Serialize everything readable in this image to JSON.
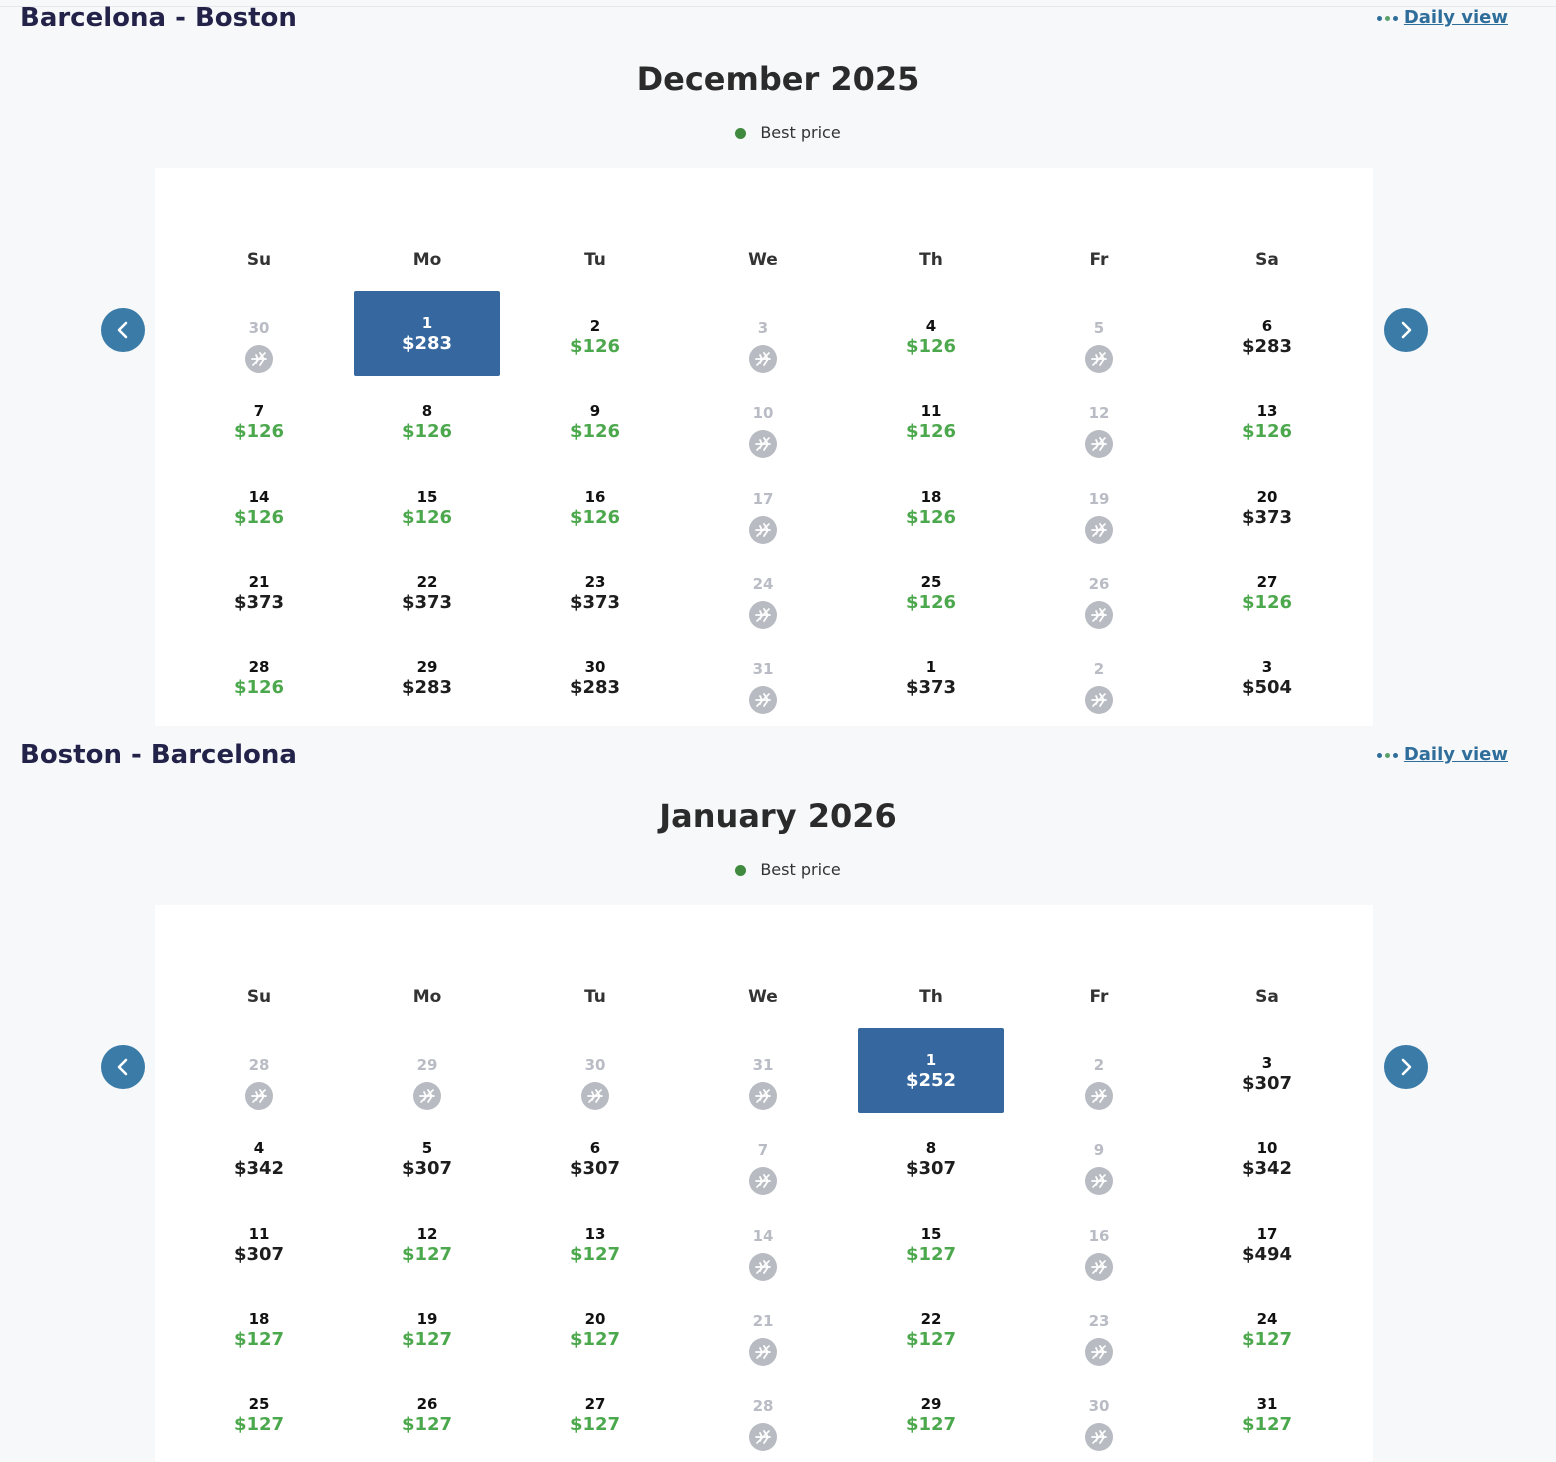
{
  "colors": {
    "selected": "#36679f",
    "best": "#4ca84c",
    "nav": "#3a7ba8",
    "no_flight": "#b8bbc2"
  },
  "icons": {
    "no_flight": "no-flight-plane-icon",
    "prev": "chevron-left-icon",
    "next": "chevron-right-icon",
    "daily": "dots-icon"
  },
  "sections": [
    {
      "route": "Barcelona - Boston",
      "daily_view": "Daily view",
      "month": "December 2025",
      "legend": "Best price",
      "weekdays": [
        "Su",
        "Mo",
        "Tu",
        "We",
        "Th",
        "Fr",
        "Sa"
      ],
      "weeks": [
        [
          {
            "day": "30",
            "status": "nofly"
          },
          {
            "day": "1",
            "price": "$283",
            "status": "selected"
          },
          {
            "day": "2",
            "price": "$126",
            "status": "best"
          },
          {
            "day": "3",
            "status": "nofly"
          },
          {
            "day": "4",
            "price": "$126",
            "status": "best"
          },
          {
            "day": "5",
            "status": "nofly"
          },
          {
            "day": "6",
            "price": "$283",
            "status": "normal"
          }
        ],
        [
          {
            "day": "7",
            "price": "$126",
            "status": "best"
          },
          {
            "day": "8",
            "price": "$126",
            "status": "best"
          },
          {
            "day": "9",
            "price": "$126",
            "status": "best"
          },
          {
            "day": "10",
            "status": "nofly"
          },
          {
            "day": "11",
            "price": "$126",
            "status": "best"
          },
          {
            "day": "12",
            "status": "nofly"
          },
          {
            "day": "13",
            "price": "$126",
            "status": "best"
          }
        ],
        [
          {
            "day": "14",
            "price": "$126",
            "status": "best"
          },
          {
            "day": "15",
            "price": "$126",
            "status": "best"
          },
          {
            "day": "16",
            "price": "$126",
            "status": "best"
          },
          {
            "day": "17",
            "status": "nofly"
          },
          {
            "day": "18",
            "price": "$126",
            "status": "best"
          },
          {
            "day": "19",
            "status": "nofly"
          },
          {
            "day": "20",
            "price": "$373",
            "status": "normal"
          }
        ],
        [
          {
            "day": "21",
            "price": "$373",
            "status": "normal"
          },
          {
            "day": "22",
            "price": "$373",
            "status": "normal"
          },
          {
            "day": "23",
            "price": "$373",
            "status": "normal"
          },
          {
            "day": "24",
            "status": "nofly"
          },
          {
            "day": "25",
            "price": "$126",
            "status": "best"
          },
          {
            "day": "26",
            "status": "nofly"
          },
          {
            "day": "27",
            "price": "$126",
            "status": "best"
          }
        ],
        [
          {
            "day": "28",
            "price": "$126",
            "status": "best"
          },
          {
            "day": "29",
            "price": "$283",
            "status": "normal"
          },
          {
            "day": "30",
            "price": "$283",
            "status": "normal"
          },
          {
            "day": "31",
            "status": "nofly"
          },
          {
            "day": "1",
            "price": "$373",
            "status": "normal"
          },
          {
            "day": "2",
            "status": "nofly"
          },
          {
            "day": "3",
            "price": "$504",
            "status": "normal"
          }
        ]
      ]
    },
    {
      "route": "Boston - Barcelona",
      "daily_view": "Daily view",
      "month": "January 2026",
      "legend": "Best price",
      "weekdays": [
        "Su",
        "Mo",
        "Tu",
        "We",
        "Th",
        "Fr",
        "Sa"
      ],
      "weeks": [
        [
          {
            "day": "28",
            "status": "nofly"
          },
          {
            "day": "29",
            "status": "nofly"
          },
          {
            "day": "30",
            "status": "nofly"
          },
          {
            "day": "31",
            "status": "nofly"
          },
          {
            "day": "1",
            "price": "$252",
            "status": "selected"
          },
          {
            "day": "2",
            "status": "nofly"
          },
          {
            "day": "3",
            "price": "$307",
            "status": "normal"
          }
        ],
        [
          {
            "day": "4",
            "price": "$342",
            "status": "normal"
          },
          {
            "day": "5",
            "price": "$307",
            "status": "normal"
          },
          {
            "day": "6",
            "price": "$307",
            "status": "normal"
          },
          {
            "day": "7",
            "status": "nofly"
          },
          {
            "day": "8",
            "price": "$307",
            "status": "normal"
          },
          {
            "day": "9",
            "status": "nofly"
          },
          {
            "day": "10",
            "price": "$342",
            "status": "normal"
          }
        ],
        [
          {
            "day": "11",
            "price": "$307",
            "status": "normal"
          },
          {
            "day": "12",
            "price": "$127",
            "status": "best"
          },
          {
            "day": "13",
            "price": "$127",
            "status": "best"
          },
          {
            "day": "14",
            "status": "nofly"
          },
          {
            "day": "15",
            "price": "$127",
            "status": "best"
          },
          {
            "day": "16",
            "status": "nofly"
          },
          {
            "day": "17",
            "price": "$494",
            "status": "normal"
          }
        ],
        [
          {
            "day": "18",
            "price": "$127",
            "status": "best"
          },
          {
            "day": "19",
            "price": "$127",
            "status": "best"
          },
          {
            "day": "20",
            "price": "$127",
            "status": "best"
          },
          {
            "day": "21",
            "status": "nofly"
          },
          {
            "day": "22",
            "price": "$127",
            "status": "best"
          },
          {
            "day": "23",
            "status": "nofly"
          },
          {
            "day": "24",
            "price": "$127",
            "status": "best"
          }
        ],
        [
          {
            "day": "25",
            "price": "$127",
            "status": "best"
          },
          {
            "day": "26",
            "price": "$127",
            "status": "best"
          },
          {
            "day": "27",
            "price": "$127",
            "status": "best"
          },
          {
            "day": "28",
            "status": "nofly"
          },
          {
            "day": "29",
            "price": "$127",
            "status": "best"
          },
          {
            "day": "30",
            "status": "nofly"
          },
          {
            "day": "31",
            "price": "$127",
            "status": "best"
          }
        ]
      ]
    }
  ]
}
